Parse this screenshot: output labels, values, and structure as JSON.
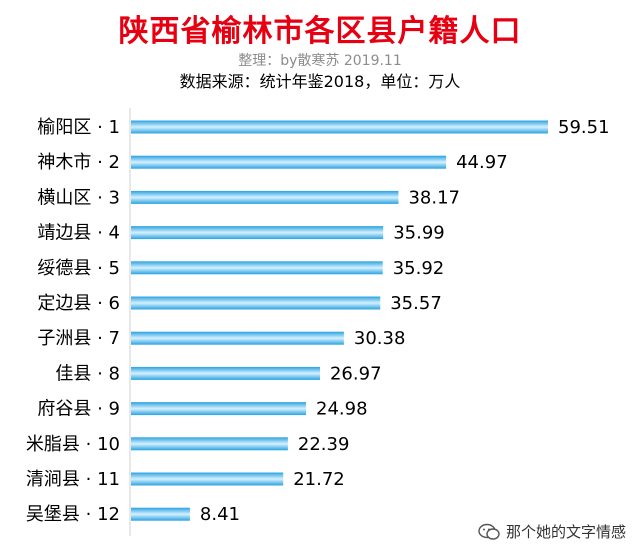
{
  "header": {
    "title": "陕西省榆林市各区县户籍人口",
    "subtitle": "整理：by散寒苏 2019.11",
    "source": "数据来源：统计年鉴2018，单位：万人"
  },
  "watermark": {
    "text": "那个她的文字情感",
    "icon": "wechat-icon"
  },
  "colors": {
    "title": "#e60012",
    "bar_edge": "#29a3e0",
    "bar_center": "#d6f0ff"
  },
  "chart_data": {
    "type": "bar",
    "orientation": "horizontal",
    "categories": [
      "榆阳区 · 1",
      "神木市 · 2",
      "横山区 · 3",
      "靖边县 · 4",
      "绥德县 · 5",
      "定边县 · 6",
      "子洲县 · 7",
      "佳县 · 8",
      "府谷县 · 9",
      "米脂县 · 10",
      "清涧县 · 11",
      "吴堡县 · 12"
    ],
    "values": [
      59.51,
      44.97,
      38.17,
      35.99,
      35.92,
      35.57,
      30.38,
      26.97,
      24.98,
      22.39,
      21.72,
      8.41
    ],
    "value_labels": [
      "59.51",
      "44.97",
      "38.17",
      "35.99",
      "35.92",
      "35.57",
      "30.38",
      "26.97",
      "24.98",
      "22.39",
      "21.72",
      "8.41"
    ],
    "xlim": [
      0,
      59.51
    ],
    "grid": false,
    "legend": "none"
  }
}
